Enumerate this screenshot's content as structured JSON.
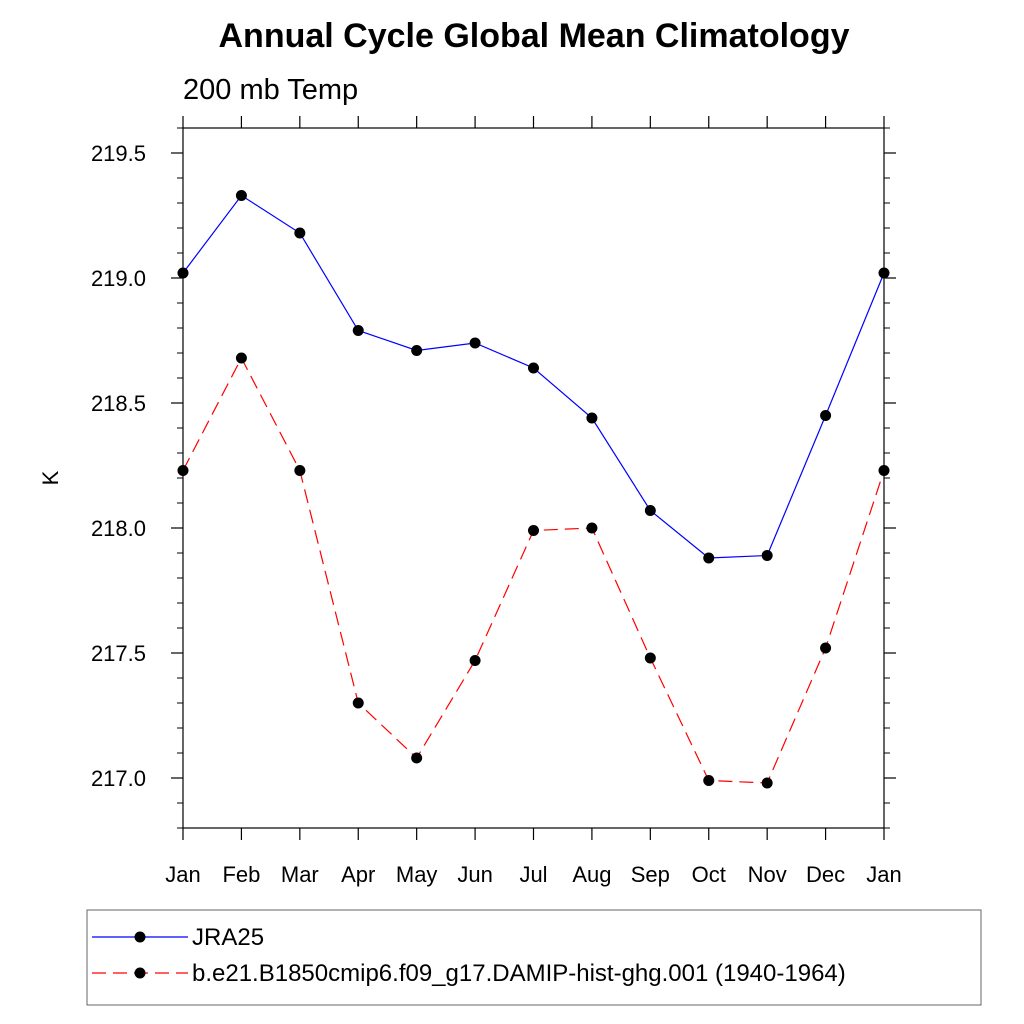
{
  "chart_data": {
    "type": "line",
    "title": "Annual Cycle Global Mean Climatology",
    "subtitle": "200 mb Temp",
    "xlabel": "",
    "ylabel": "K",
    "categories": [
      "Jan",
      "Feb",
      "Mar",
      "Apr",
      "May",
      "Jun",
      "Jul",
      "Aug",
      "Sep",
      "Oct",
      "Nov",
      "Dec",
      "Jan"
    ],
    "ylim": [
      216.8,
      219.6
    ],
    "yticks": [
      217.0,
      217.5,
      218.0,
      218.5,
      219.0,
      219.5
    ],
    "ytick_labels": [
      "217.0",
      "217.5",
      "218.0",
      "218.5",
      "219.0",
      "219.5"
    ],
    "grid": false,
    "legend_position": "bottom",
    "series": [
      {
        "name": "JRA25",
        "color": "#0000ff",
        "dash": "solid",
        "values": [
          219.02,
          219.33,
          219.18,
          218.79,
          218.71,
          218.74,
          218.64,
          218.44,
          218.07,
          217.88,
          217.89,
          218.45,
          219.02
        ]
      },
      {
        "name": "b.e21.B1850cmip6.f09_g17.DAMIP-hist-ghg.001 (1940-1964)",
        "color": "#ff0000",
        "dash": "dashed",
        "values": [
          218.23,
          218.68,
          218.23,
          217.3,
          217.08,
          217.47,
          217.99,
          218.0,
          217.48,
          216.99,
          216.98,
          217.52,
          218.23
        ]
      }
    ]
  }
}
